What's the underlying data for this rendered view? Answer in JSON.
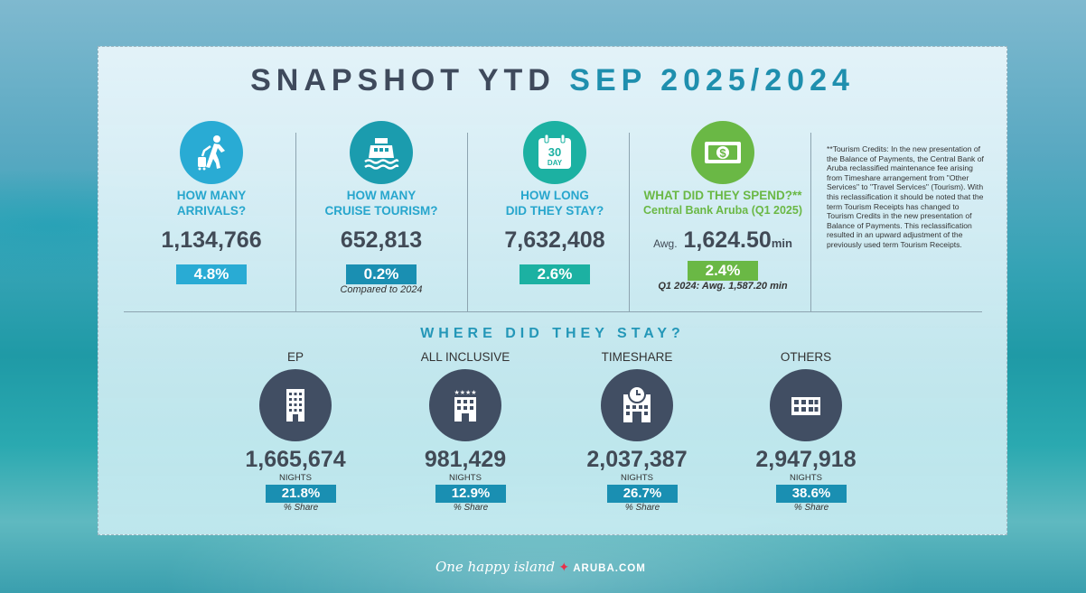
{
  "title": {
    "main": "SNAPSHOT YTD",
    "period": "SEP 2025/2024"
  },
  "stats": [
    {
      "question_1": "HOW MANY",
      "question_2": "ARRIVALS?",
      "value": "1,134,766",
      "pct": "4.8%",
      "icon": "walking-traveler-icon",
      "color": "#29abd4"
    },
    {
      "question_1": "HOW MANY",
      "question_2": "CRUISE TOURISM?",
      "value": "652,813",
      "pct": "0.2%",
      "note": "Compared to 2024",
      "icon": "cruise-ship-icon",
      "color": "#1b9cae"
    },
    {
      "question_1": "HOW LONG",
      "question_2": "DID THEY STAY?",
      "value": "7,632,408",
      "pct": "2.6%",
      "icon": "calendar-icon",
      "color": "#1cb1a2",
      "calendar_num": "30",
      "calendar_word": "DAY"
    },
    {
      "question_1": "WHAT DID THEY SPEND?**",
      "question_2": "Central Bank Aruba (Q1 2025)",
      "value_prefix": "Awg.",
      "value": "1,624.50",
      "value_suffix": "min",
      "pct": "2.4%",
      "note": "Q1 2024: Awg. 1,587.20 min",
      "icon": "dollar-bill-icon",
      "color": "#6ab845"
    }
  ],
  "tourism_note": "**Tourism Credits: In the new presentation of the Balance of Payments, the Central Bank of Aruba reclassified maintenance fee arising from Timeshare arrangement from \"Other Services\" to \"Travel Services\" (Tourism). With this reclassification it should be noted that the term Tourism Receipts has changed to Tourism Credits in the new presentation of Balance of Payments. This reclassification resulted in an upward adjustment of the previously used term Tourism Receipts.",
  "where": {
    "heading": "WHERE DID THEY STAY?",
    "items": [
      {
        "label": "EP",
        "value": "1,665,674",
        "unit": "NIGHTS",
        "share": "21.8%",
        "share_label": "% Share",
        "icon": "hotel-building-icon"
      },
      {
        "label": "ALL INCLUSIVE",
        "value": "981,429",
        "unit": "NIGHTS",
        "share": "12.9%",
        "share_label": "% Share",
        "icon": "four-star-hotel-icon"
      },
      {
        "label": "TIMESHARE",
        "value": "2,037,387",
        "unit": "NIGHTS",
        "share": "26.7%",
        "share_label": "% Share",
        "icon": "clock-building-icon"
      },
      {
        "label": "OTHERS",
        "value": "2,947,918",
        "unit": "NIGHTS",
        "share": "38.6%",
        "share_label": "% Share",
        "icon": "low-building-icon"
      }
    ]
  },
  "footer": {
    "slogan": "One happy island",
    "brand": "ARUBA.COM"
  }
}
